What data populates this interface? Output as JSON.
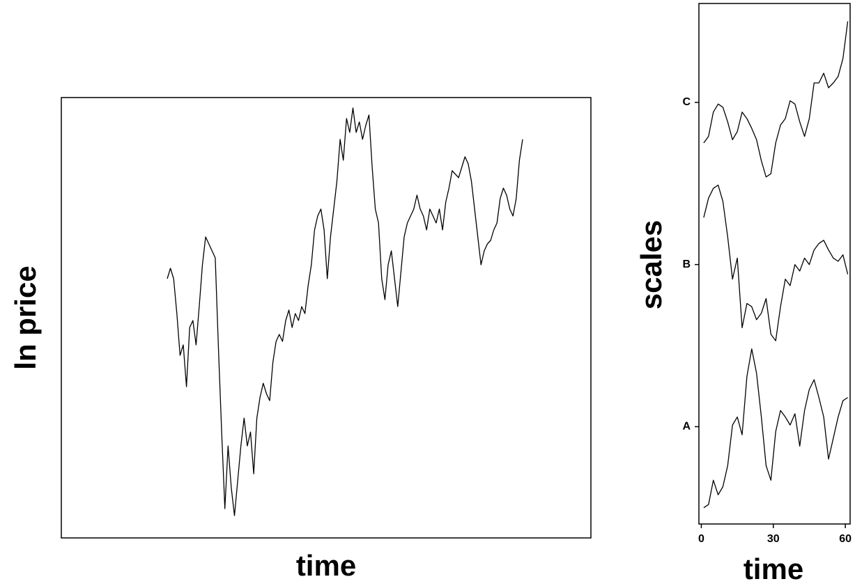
{
  "chart_data": [
    {
      "type": "line",
      "xlabel": "time",
      "ylabel": "ln price",
      "color": "#000000",
      "ylim": [
        0,
        632
      ],
      "values": [
        372,
        387,
        372,
        322,
        262,
        277,
        217,
        302,
        312,
        277,
        332,
        392,
        432,
        422,
        412,
        402,
        272,
        152,
        42,
        132,
        72,
        32,
        82,
        132,
        172,
        132,
        152,
        92,
        172,
        202,
        222,
        207,
        197,
        252,
        282,
        292,
        282,
        312,
        327,
        302,
        322,
        312,
        332,
        322,
        362,
        392,
        442,
        462,
        472,
        442,
        372,
        432,
        472,
        512,
        572,
        542,
        602,
        582,
        617,
        582,
        597,
        572,
        592,
        607,
        532,
        472,
        452,
        372,
        342,
        392,
        412,
        372,
        332,
        382,
        432,
        452,
        462,
        472,
        492,
        472,
        462,
        442,
        472,
        462,
        452,
        472,
        442,
        482,
        502,
        527,
        522,
        517,
        532,
        547,
        537,
        512,
        472,
        432,
        392,
        412,
        422,
        427,
        442,
        452,
        487,
        502,
        492,
        472,
        462,
        487,
        542,
        572
      ]
    },
    {
      "type": "line",
      "xlabel": "time",
      "ylabel": "scales",
      "xlim": [
        -1,
        62
      ],
      "ylim": [
        0.4,
        3.61
      ],
      "xticks": [
        0,
        30,
        60
      ],
      "yticks": [
        {
          "value": 1,
          "label": "A"
        },
        {
          "value": 2,
          "label": "B"
        },
        {
          "value": 3,
          "label": "C"
        }
      ],
      "x": [
        1,
        3,
        5,
        7,
        9,
        11,
        13,
        15,
        17,
        19,
        21,
        23,
        25,
        27,
        29,
        31,
        33,
        35,
        37,
        39,
        41,
        43,
        45,
        47,
        49,
        51,
        53,
        55,
        57,
        59,
        61
      ],
      "series": [
        {
          "color": "#000000",
          "values": [
            0.5,
            0.52,
            0.67,
            0.58,
            0.63,
            0.76,
            1.01,
            1.06,
            0.95,
            1.31,
            1.48,
            1.33,
            1.06,
            0.76,
            0.67,
            0.97,
            1.1,
            1.06,
            1.01,
            1.08,
            0.88,
            1.1,
            1.23,
            1.29,
            1.18,
            1.06,
            0.8,
            0.93,
            1.06,
            1.16,
            1.18
          ]
        },
        {
          "color": "#000000",
          "values": [
            2.29,
            2.41,
            2.47,
            2.49,
            2.39,
            2.17,
            1.91,
            2.04,
            1.61,
            1.76,
            1.74,
            1.66,
            1.7,
            1.79,
            1.57,
            1.53,
            1.74,
            1.91,
            1.87,
            2.0,
            1.96,
            2.04,
            2.0,
            2.09,
            2.13,
            2.15,
            2.09,
            2.04,
            2.02,
            2.06,
            1.94
          ]
        },
        {
          "color": "#000000",
          "values": [
            2.75,
            2.79,
            2.94,
            2.99,
            2.97,
            2.88,
            2.77,
            2.82,
            2.94,
            2.9,
            2.84,
            2.77,
            2.64,
            2.54,
            2.56,
            2.75,
            2.86,
            2.9,
            3.01,
            2.99,
            2.88,
            2.79,
            2.9,
            3.12,
            3.12,
            3.18,
            3.09,
            3.12,
            3.16,
            3.27,
            3.5
          ]
        }
      ]
    }
  ]
}
